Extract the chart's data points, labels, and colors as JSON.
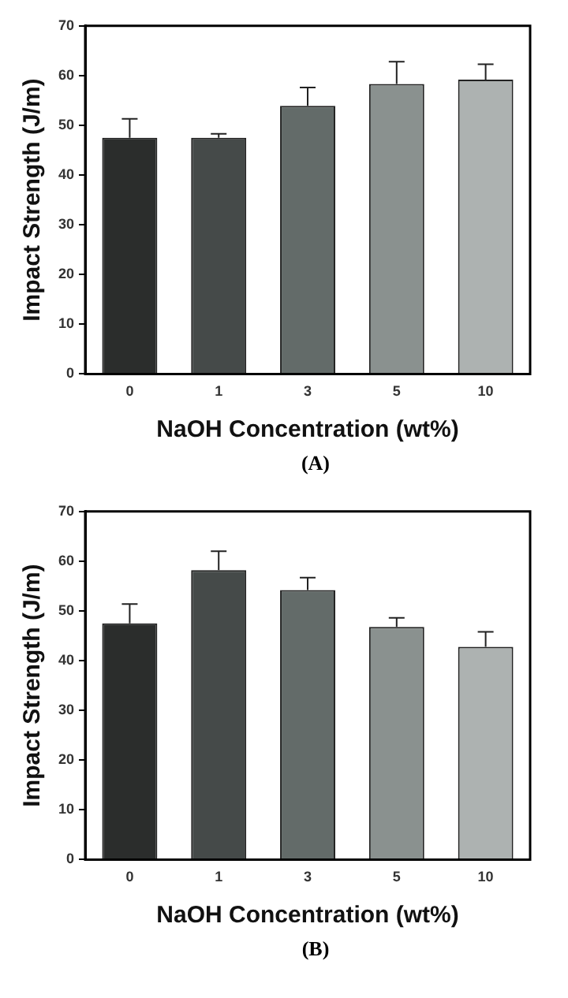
{
  "chart_data": [
    {
      "type": "bar",
      "categories": [
        "0",
        "1",
        "3",
        "5",
        "10"
      ],
      "values": [
        47.5,
        47.5,
        53.9,
        58.3,
        59.2
      ],
      "colors": [
        "#2b2d2c",
        "#454a49",
        "#636b69",
        "#8a918f",
        "#adb2b1"
      ],
      "errors": [
        [
          47.5,
          51.3
        ],
        [
          47.5,
          48.3
        ],
        [
          53.9,
          57.6
        ],
        [
          58.3,
          62.8
        ],
        [
          59.2,
          62.3
        ]
      ],
      "xlabel": "NaOH Concentration (wt%)",
      "ylabel": "Impact Strength (J/m)",
      "ylim": [
        0,
        70
      ],
      "yticks": [
        0,
        10,
        20,
        30,
        40,
        50,
        60,
        70
      ],
      "grid": false,
      "legend": false,
      "annotations": [
        "(A)"
      ]
    },
    {
      "type": "bar",
      "categories": [
        "0",
        "1",
        "3",
        "5",
        "10"
      ],
      "values": [
        47.5,
        58.2,
        54.2,
        46.8,
        42.8
      ],
      "colors": [
        "#2b2d2c",
        "#454a49",
        "#636b69",
        "#8a918f",
        "#adb2b1"
      ],
      "errors": [
        [
          47.5,
          51.4
        ],
        [
          58.2,
          62.0
        ],
        [
          54.2,
          56.7
        ],
        [
          46.8,
          48.6
        ],
        [
          42.8,
          45.8
        ]
      ],
      "xlabel": "NaOH Concentration (wt%)",
      "ylabel": "Impact Strength (J/m)",
      "ylim": [
        0,
        70
      ],
      "yticks": [
        0,
        10,
        20,
        30,
        40,
        50,
        60,
        70
      ],
      "grid": false,
      "legend": false,
      "annotations": [
        "(B)"
      ]
    }
  ]
}
